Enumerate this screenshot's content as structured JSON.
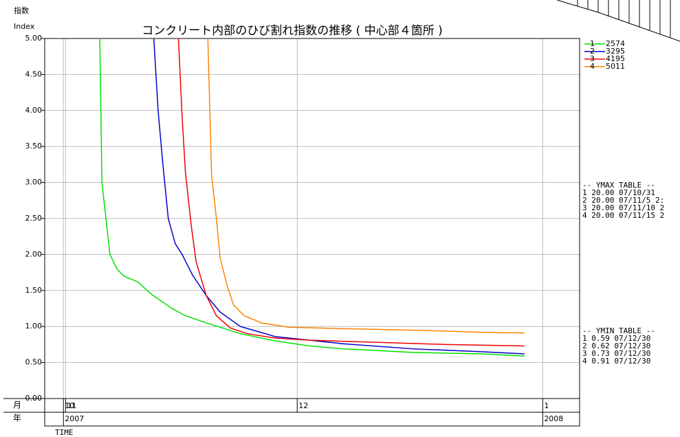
{
  "chart_data": {
    "type": "line",
    "title": "コンクリート内部のひび割れ指数の推移 ( 中心部４箇所 )",
    "y_label": "指数",
    "y_label_en": "Index",
    "x_label": "TIME",
    "month_row_label": "月",
    "year_row_label": "年",
    "xlim": [
      0,
      100
    ],
    "ylim": [
      0,
      5
    ],
    "yticks": [
      {
        "value": 0,
        "label": "0.00"
      },
      {
        "value": 0.5,
        "label": "0.50"
      },
      {
        "value": 1,
        "label": "1.00"
      },
      {
        "value": 1.5,
        "label": "1.50"
      },
      {
        "value": 2,
        "label": "2.00"
      },
      {
        "value": 2.5,
        "label": "2.50"
      },
      {
        "value": 3,
        "label": "3.00"
      },
      {
        "value": 3.5,
        "label": "3.50"
      },
      {
        "value": 4,
        "label": "4.00"
      },
      {
        "value": 4.5,
        "label": "4.50"
      },
      {
        "value": 5,
        "label": "5.00"
      }
    ],
    "xticks": [
      {
        "value": 3.5,
        "label": "10"
      },
      {
        "value": 3.9,
        "label": "11"
      },
      {
        "value": 47.2,
        "label": "12"
      },
      {
        "value": 93.1,
        "label": "1"
      }
    ],
    "year_ticks": [
      {
        "value": 3.5,
        "label": "2007"
      },
      {
        "value": 93.1,
        "label": "2008"
      }
    ],
    "grid": true,
    "series": [
      {
        "name": "2574",
        "id": "1",
        "color": "#00e000",
        "x": [
          10.3,
          10.7,
          11.6,
          12.2,
          13.5,
          14.8,
          17.4,
          19.9,
          23.8,
          26.3,
          30.2,
          36.6,
          43.1,
          49.5,
          55.9,
          68.8,
          81.6,
          89.7
        ],
        "values": [
          5.0,
          3.0,
          2.4,
          2.0,
          1.8,
          1.7,
          1.62,
          1.45,
          1.25,
          1.15,
          1.05,
          0.9,
          0.8,
          0.73,
          0.69,
          0.64,
          0.62,
          0.59
        ]
      },
      {
        "name": "3295",
        "id": "2",
        "color": "#0000cc",
        "x": [
          20.4,
          21.2,
          22.1,
          23.1,
          24.4,
          25.7,
          27.6,
          30.2,
          32.8,
          36.6,
          43.1,
          49.5,
          55.9,
          68.8,
          81.6,
          89.7
        ],
        "values": [
          5.0,
          4.0,
          3.25,
          2.5,
          2.15,
          2.0,
          1.72,
          1.43,
          1.2,
          1.0,
          0.86,
          0.81,
          0.76,
          0.69,
          0.65,
          0.62
        ]
      },
      {
        "name": "4195",
        "id": "3",
        "color": "#ee0000",
        "x": [
          25.0,
          25.7,
          26.3,
          27.4,
          28.3,
          30.2,
          32.1,
          34.7,
          37.9,
          43.1,
          49.5,
          62.3,
          75.2,
          89.7
        ],
        "values": [
          5.0,
          3.9,
          3.15,
          2.4,
          1.9,
          1.43,
          1.15,
          0.98,
          0.9,
          0.84,
          0.81,
          0.78,
          0.75,
          0.73
        ]
      },
      {
        "name": "5011",
        "id": "4",
        "color": "#ff8000",
        "x": [
          30.5,
          31.2,
          32.1,
          32.8,
          34.1,
          35.3,
          37.3,
          40.5,
          45.6,
          55.9,
          68.8,
          81.6,
          89.7
        ],
        "values": [
          5.0,
          3.1,
          2.5,
          1.95,
          1.57,
          1.3,
          1.15,
          1.05,
          0.99,
          0.97,
          0.95,
          0.92,
          0.91
        ]
      }
    ],
    "ymax_table": [
      "-- YMAX TABLE --",
      "1 20.00 07/10/31",
      "2 20.00 07/11/5 2:",
      "3 20.00 07/11/10 2",
      "4 20.00 07/11/15 2"
    ],
    "ymin_table": [
      "-- YMIN TABLE --",
      "1  0.59 07/12/30",
      "2  0.62 07/12/30",
      "3  0.73 07/12/30",
      "4  0.91 07/12/30"
    ]
  }
}
